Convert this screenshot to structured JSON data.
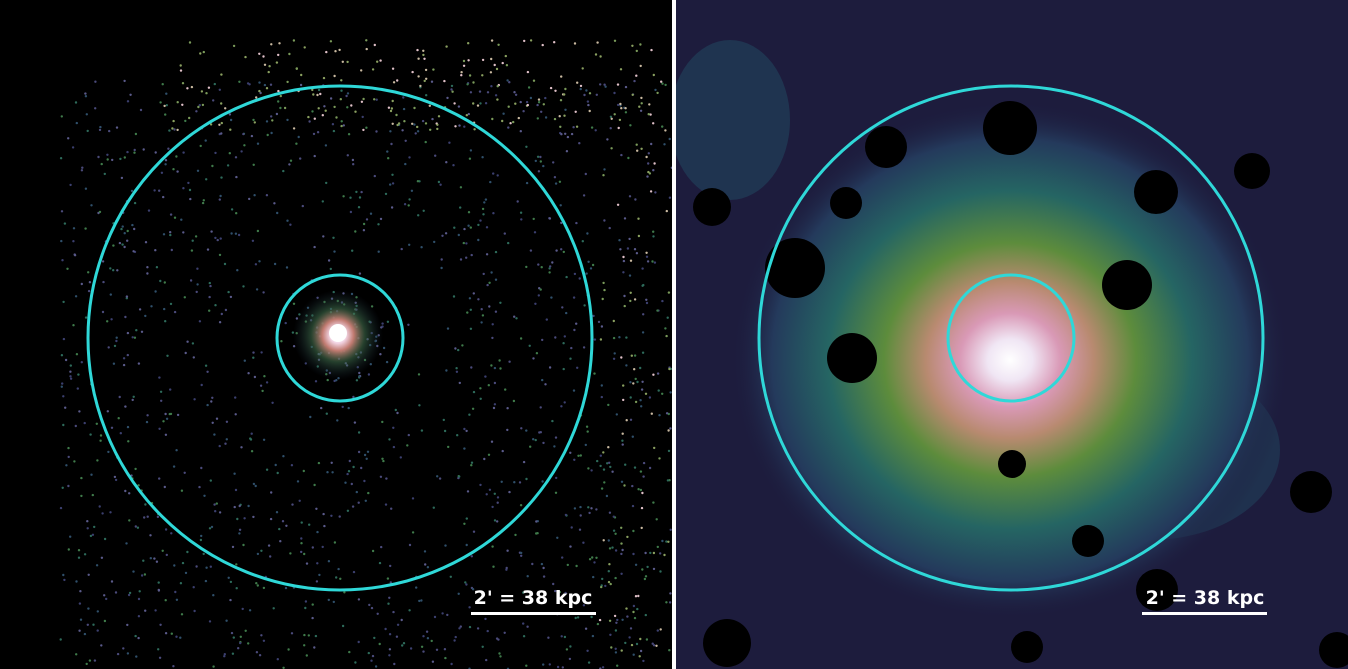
{
  "panels": [
    {
      "scale_label": "2' = 38 kpc"
    },
    {
      "scale_label": "2' = 38 kpc"
    }
  ]
}
